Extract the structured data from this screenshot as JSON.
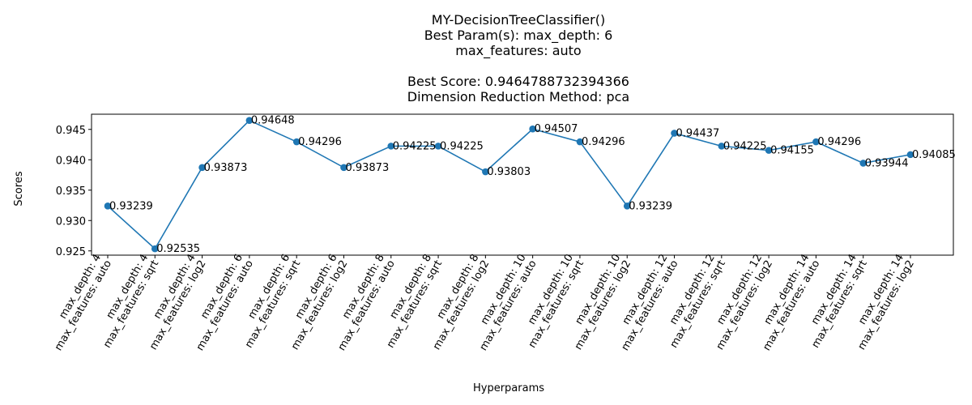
{
  "chart_data": {
    "type": "line",
    "title_lines": [
      "MY-DecisionTreeClassifier()",
      "Best Param(s): max_depth: 6",
      "max_features: auto",
      "",
      "Best Score: 0.9464788732394366",
      "Dimension Reduction Method: pca"
    ],
    "xlabel": "Hyperparams",
    "ylabel": "Scores",
    "ylim": [
      0.9243,
      0.9475
    ],
    "yticks": [
      "0.925",
      "0.930",
      "0.935",
      "0.940",
      "0.945"
    ],
    "ytick_values": [
      0.925,
      0.93,
      0.935,
      0.94,
      0.945
    ],
    "color": "#1f77b4",
    "grid": false,
    "categories": [
      [
        "max_depth: 4",
        "max_features: auto"
      ],
      [
        "max_depth: 4",
        "max_features: sqrt"
      ],
      [
        "max_depth: 4",
        "max_features: log2"
      ],
      [
        "max_depth: 6",
        "max_features: auto"
      ],
      [
        "max_depth: 6",
        "max_features: sqrt"
      ],
      [
        "max_depth: 6",
        "max_features: log2"
      ],
      [
        "max_depth: 8",
        "max_features: auto"
      ],
      [
        "max_depth: 8",
        "max_features: sqrt"
      ],
      [
        "max_depth: 8",
        "max_features: log2"
      ],
      [
        "max_depth: 10",
        "max_features: auto"
      ],
      [
        "max_depth: 10",
        "max_features: sqrt"
      ],
      [
        "max_depth: 10",
        "max_features: log2"
      ],
      [
        "max_depth: 12",
        "max_features: auto"
      ],
      [
        "max_depth: 12",
        "max_features: sqrt"
      ],
      [
        "max_depth: 12",
        "max_features: log2"
      ],
      [
        "max_depth: 14",
        "max_features: auto"
      ],
      [
        "max_depth: 14",
        "max_features: sqrt"
      ],
      [
        "max_depth: 14",
        "max_features: log2"
      ]
    ],
    "values": [
      0.93239,
      0.92535,
      0.93873,
      0.94648,
      0.94296,
      0.93873,
      0.94225,
      0.94225,
      0.93803,
      0.94507,
      0.94296,
      0.93239,
      0.94437,
      0.94225,
      0.94155,
      0.94296,
      0.93944,
      0.94085
    ],
    "value_labels": [
      "0.93239",
      "0.92535",
      "0.93873",
      "0.94648",
      "0.94296",
      "0.93873",
      "0.94225",
      "0.94225",
      "0.93803",
      "0.94507",
      "0.94296",
      "0.93239",
      "0.94437",
      "0.94225",
      "0.94155",
      "0.94296",
      "0.93944",
      "0.94085"
    ]
  }
}
